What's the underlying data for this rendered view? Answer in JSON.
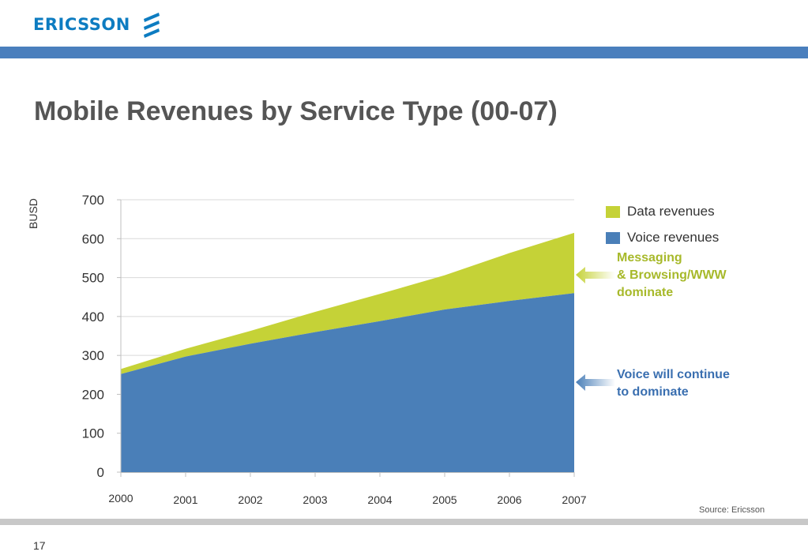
{
  "header": {
    "logo_text": "ERICSSON",
    "brand_color": "#0d7cc1",
    "bar_color": "#4a7fbd"
  },
  "slide": {
    "title": "Mobile Revenues by Service Type (00-07)",
    "unit_label": "BUSD",
    "source": "Source: Ericsson",
    "page_number": "17"
  },
  "annotations": {
    "data": {
      "lines": [
        "Messaging",
        "& Browsing/WWW",
        "dominate"
      ],
      "color": "#a7b92a"
    },
    "voice": {
      "lines": [
        "Voice will continue",
        "to dominate"
      ],
      "color": "#3a6fb0"
    }
  },
  "chart_data": {
    "type": "area",
    "stacked": true,
    "categories": [
      "2000",
      "2001",
      "2002",
      "2003",
      "2004",
      "2005",
      "2006",
      "2007"
    ],
    "series": [
      {
        "name": "Voice revenues",
        "color": "#4a7fb8",
        "values": [
          252,
          297,
          330,
          360,
          388,
          418,
          440,
          460
        ]
      },
      {
        "name": "Data revenues",
        "color": "#c5d237",
        "values": [
          13,
          20,
          33,
          52,
          70,
          88,
          123,
          155
        ]
      }
    ],
    "ylim": [
      0,
      700
    ],
    "yticks": [
      0,
      100,
      200,
      300,
      400,
      500,
      600,
      700
    ],
    "grid": true,
    "legend_position": "right"
  }
}
